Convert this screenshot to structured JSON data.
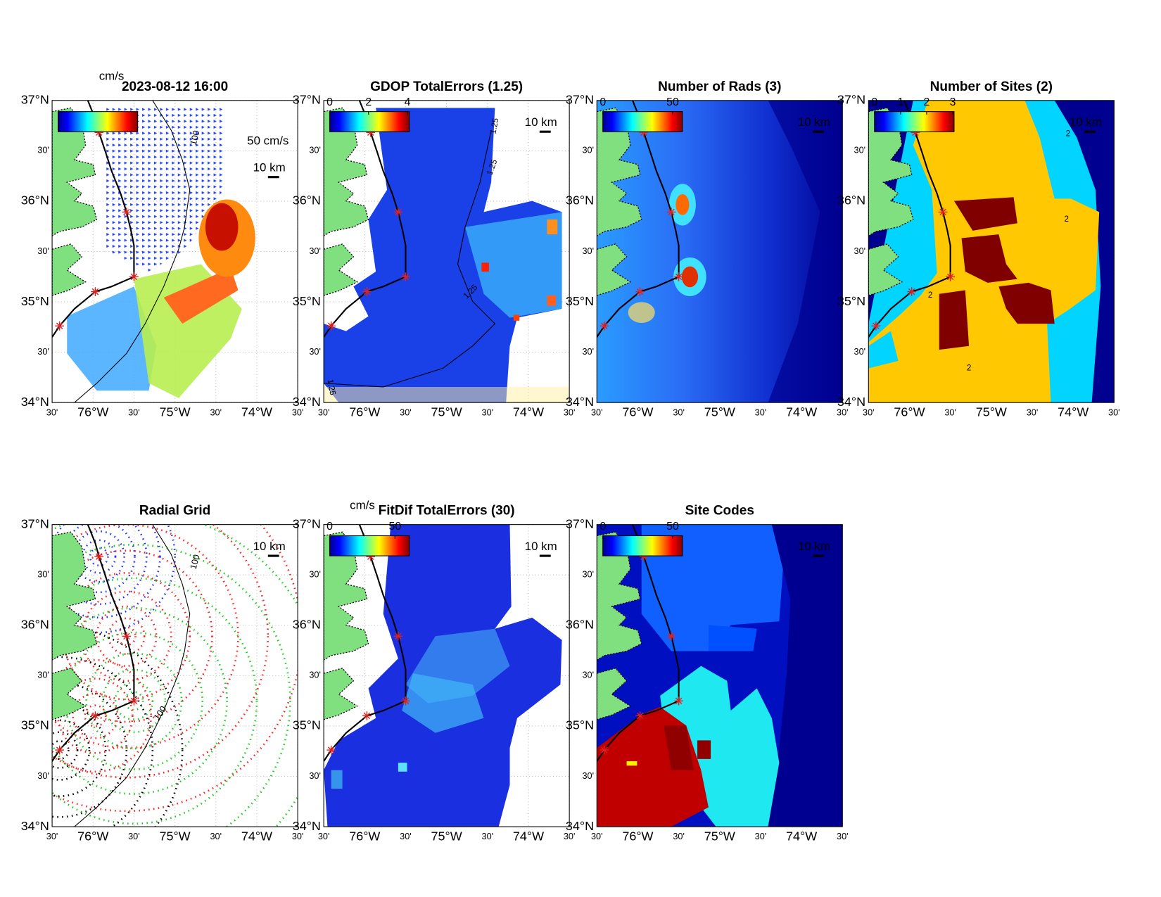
{
  "panels": [
    {
      "title": "2023-08-12 16:00",
      "colorbar_label": "cm/s",
      "speed_scale": "50 cm/s",
      "distance_scale": "10 km",
      "contour_labels": [
        "100"
      ]
    },
    {
      "title": "GDOP TotalErrors (1.25)",
      "clim": [
        0,
        4.1
      ],
      "cbar_ticks": [
        0,
        2,
        4
      ],
      "distance_scale": "10 km",
      "contour_labels": [
        "1.25",
        "1.25",
        "1.25",
        "1.25"
      ]
    },
    {
      "title": "Number of Rads (3)",
      "clim": [
        0,
        57
      ],
      "cbar_ticks": [
        0,
        50
      ],
      "distance_scale": "10 km"
    },
    {
      "title": "Number of Sites (2)",
      "clim": [
        0,
        3.05
      ],
      "cbar_ticks": [
        0,
        1,
        2,
        3
      ],
      "distance_scale": "10 km",
      "contour_labels": [
        "2",
        "2",
        "2",
        "2"
      ]
    },
    {
      "title": "Radial Grid",
      "distance_scale": "10 km",
      "contour_labels": [
        "100",
        "100"
      ]
    },
    {
      "title": "FitDif TotalErrors (30)",
      "colorbar_label": "cm/s",
      "clim": [
        0,
        61
      ],
      "cbar_ticks": [
        0,
        50
      ],
      "distance_scale": "10 km"
    },
    {
      "title": "Site Codes",
      "clim": [
        0,
        57
      ],
      "cbar_ticks": [
        0,
        50
      ],
      "distance_scale": "10 km"
    }
  ],
  "lat_ticks": [
    "37°N",
    "30'",
    "36°N",
    "30'",
    "35°N",
    "30'",
    "34°N"
  ],
  "lon_ticks": [
    "30'",
    "76°W",
    "30'",
    "75°W",
    "30'",
    "74°W",
    "30'"
  ]
}
